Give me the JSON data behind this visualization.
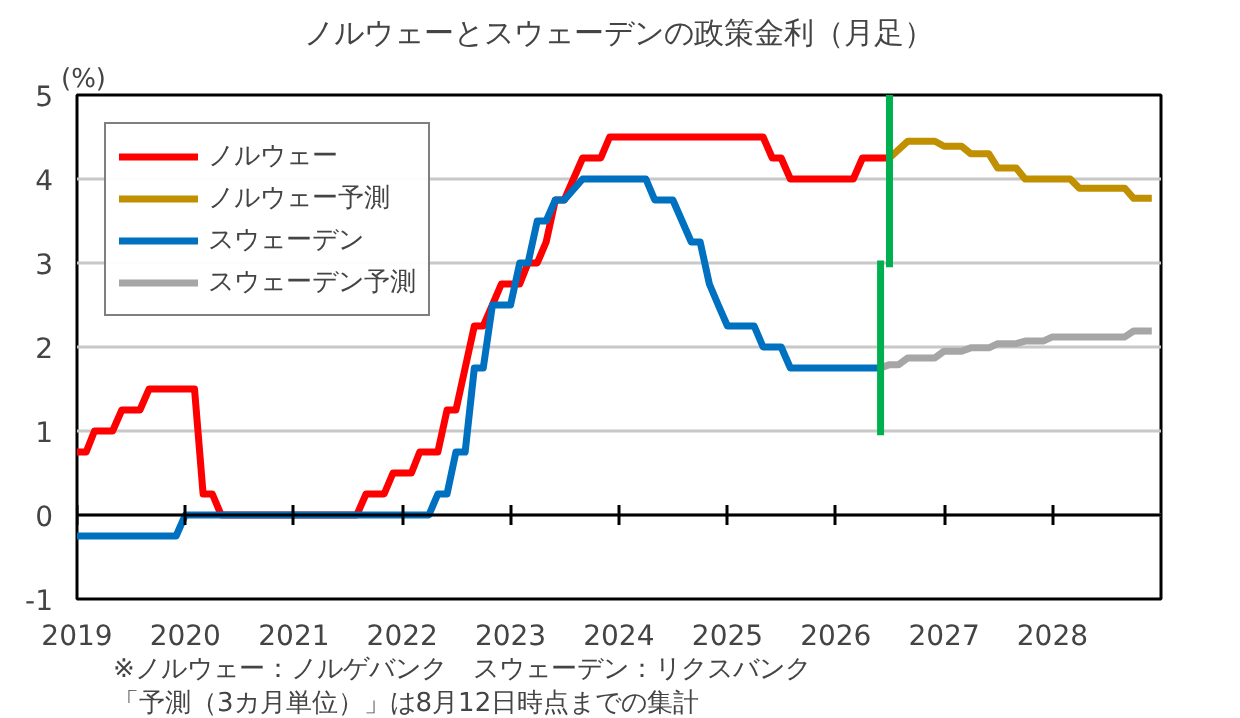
{
  "chart_data": {
    "type": "line",
    "title": "ノルウェーとスウェーデンの政策金利（月足）",
    "ylabel": "(%)",
    "xlim": [
      "2019",
      "2029"
    ],
    "xticks": [
      "2019",
      "2020",
      "2021",
      "2022",
      "2023",
      "2024",
      "2025",
      "2026",
      "2027",
      "2028"
    ],
    "ylim": [
      -1,
      5
    ],
    "yticks": [
      -1,
      0,
      1,
      2,
      3,
      4,
      5
    ],
    "grid": "y",
    "legend": "top left",
    "line_style": "solid",
    "marker": "none",
    "series": [
      {
        "name": "ノルウェー",
        "color": "#ff0000",
        "x": [
          "2019-01",
          "2019-02",
          "2019-03",
          "2019-05",
          "2019-06",
          "2019-08",
          "2019-09",
          "2020-02",
          "2020-03",
          "2020-04",
          "2020-05",
          "2021-08",
          "2021-09",
          "2021-11",
          "2021-12",
          "2022-02",
          "2022-03",
          "2022-05",
          "2022-06",
          "2022-07",
          "2022-08",
          "2022-09",
          "2022-10",
          "2022-11",
          "2022-12",
          "2023-02",
          "2023-03",
          "2023-04",
          "2023-05",
          "2023-06",
          "2023-07",
          "2023-08",
          "2023-09",
          "2023-11",
          "2023-12",
          "2025-05",
          "2025-06",
          "2025-07",
          "2025-08",
          "2026-03",
          "2026-04",
          "2026-07"
        ],
        "values": [
          0.75,
          0.75,
          1.0,
          1.0,
          1.25,
          1.25,
          1.5,
          1.5,
          0.25,
          0.25,
          0,
          0,
          0.25,
          0.25,
          0.5,
          0.5,
          0.75,
          0.75,
          1.25,
          1.25,
          1.75,
          2.25,
          2.25,
          2.5,
          2.75,
          2.75,
          3.0,
          3.0,
          3.25,
          3.75,
          3.75,
          4.0,
          4.25,
          4.25,
          4.5,
          4.5,
          4.25,
          4.25,
          4.0,
          4.0,
          4.25,
          4.25
        ]
      },
      {
        "name": "ノルウェー予測",
        "color": "#c09000",
        "x": [
          "2026-07",
          "2026-09",
          "2026-12",
          "2027-01",
          "2027-03",
          "2027-04",
          "2027-06",
          "2027-07",
          "2027-09",
          "2027-10",
          "2028-03",
          "2028-04",
          "2028-09",
          "2028-10",
          "2028-12"
        ],
        "values": [
          4.25,
          4.45,
          4.45,
          4.39,
          4.39,
          4.3,
          4.3,
          4.13,
          4.13,
          4.0,
          4.0,
          3.89,
          3.89,
          3.77,
          3.77
        ]
      },
      {
        "name": "スウェーデン",
        "color": "#0070c0",
        "x": [
          "2019-01",
          "2019-12",
          "2020-01",
          "2022-04",
          "2022-05",
          "2022-06",
          "2022-07",
          "2022-08",
          "2022-09",
          "2022-10",
          "2022-11",
          "2023-01",
          "2023-02",
          "2023-03",
          "2023-04",
          "2023-05",
          "2023-06",
          "2023-07",
          "2023-09",
          "2024-04",
          "2024-05",
          "2024-07",
          "2024-08",
          "2024-09",
          "2024-10",
          "2024-11",
          "2024-12",
          "2025-01",
          "2025-04",
          "2025-05",
          "2025-07",
          "2025-08",
          "2026-06"
        ],
        "values": [
          -0.25,
          -0.25,
          0,
          0,
          0.25,
          0.25,
          0.75,
          0.75,
          1.75,
          1.75,
          2.5,
          2.5,
          3.0,
          3.0,
          3.5,
          3.5,
          3.75,
          3.75,
          4.0,
          4.0,
          3.75,
          3.75,
          3.5,
          3.25,
          3.25,
          2.75,
          2.5,
          2.25,
          2.25,
          2.0,
          2.0,
          1.75,
          1.75
        ]
      },
      {
        "name": "スウェーデン予測",
        "color": "#a6a6a6",
        "x": [
          "2026-06",
          "2026-07",
          "2026-08",
          "2026-09",
          "2026-12",
          "2027-01",
          "2027-03",
          "2027-04",
          "2027-06",
          "2027-07",
          "2027-09",
          "2027-10",
          "2027-12",
          "2028-01",
          "2028-09",
          "2028-10",
          "2028-12"
        ],
        "values": [
          1.75,
          1.79,
          1.79,
          1.87,
          1.87,
          1.95,
          1.95,
          1.99,
          1.99,
          2.04,
          2.04,
          2.07,
          2.07,
          2.12,
          2.12,
          2.19,
          2.19
        ]
      },
      {
        "color": "#00b050",
        "x": [
          "2026-07",
          "2026-07"
        ],
        "values": [
          2.95,
          5.0
        ]
      },
      {
        "color": "#00b050",
        "x": [
          "2026-06",
          "2026-06"
        ],
        "values": [
          0.95,
          3.03
        ]
      }
    ],
    "annotations": [
      "※ノルウェー：ノルゲバンク　スウェーデン：リクスバンク",
      "「予測（3カ月単位）」は8月12日時点までの集計"
    ]
  }
}
